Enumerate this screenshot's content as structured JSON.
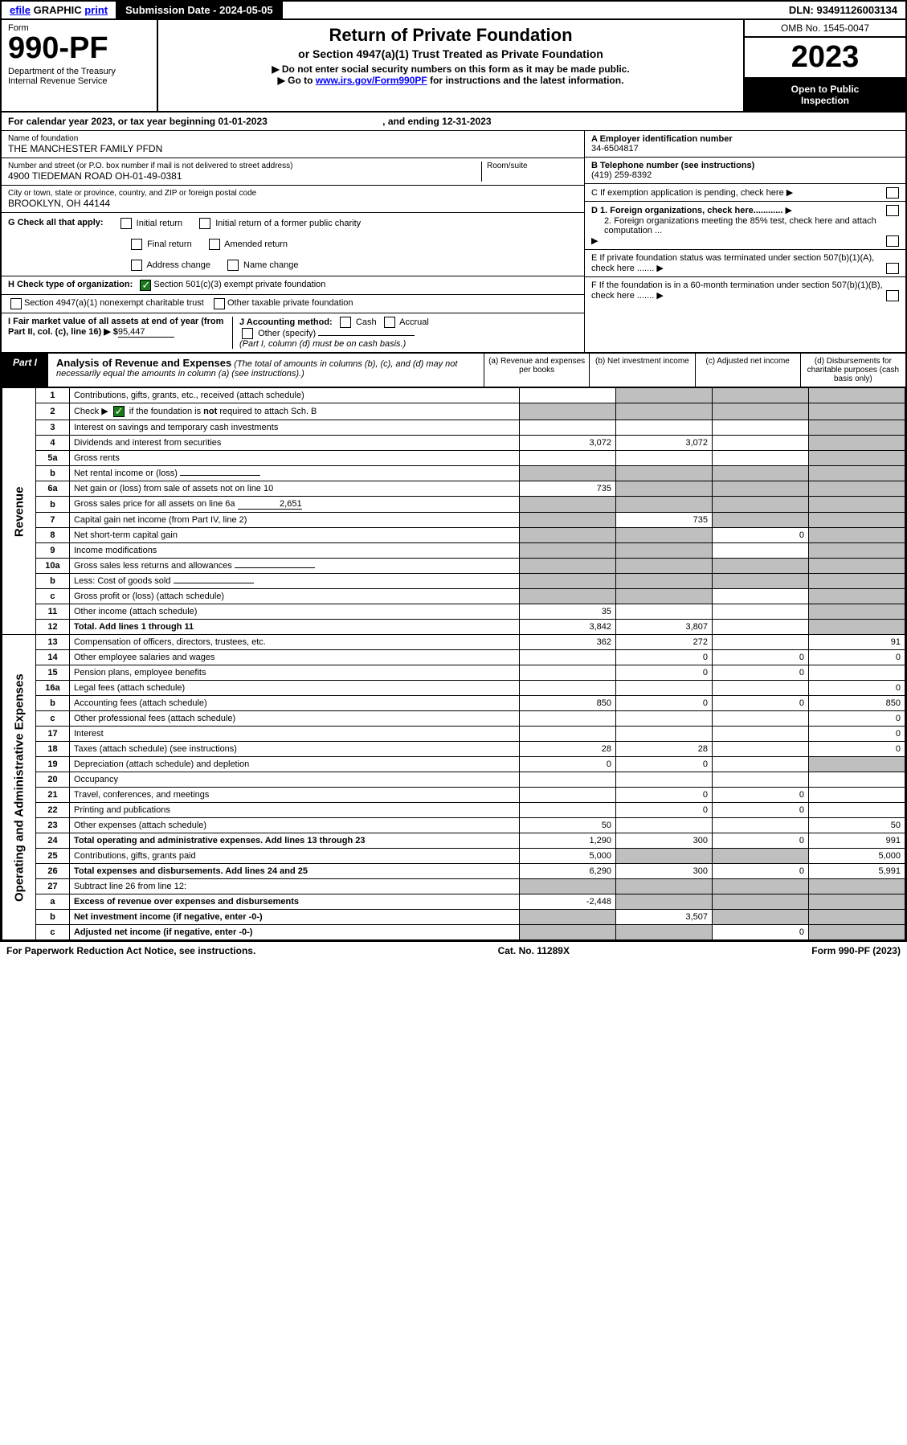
{
  "topbar": {
    "efile": "efile GRAPHIC print",
    "subdate_lbl": "Submission Date - ",
    "subdate": "2024-05-05",
    "dln_lbl": "DLN: ",
    "dln": "93491126003134",
    "efile_link": "efile"
  },
  "hdr": {
    "form": "Form",
    "code": "990-PF",
    "dept": "Department of the Treasury",
    "irs": "Internal Revenue Service",
    "title": "Return of Private Foundation",
    "sub1": "or Section 4947(a)(1) Trust Treated as Private Foundation",
    "sub2a": "▶ Do not enter social security numbers on this form as it may be made public.",
    "sub2b": "▶ Go to ",
    "link": "www.irs.gov/Form990PF",
    "sub2c": " for instructions and the latest information.",
    "omb": "OMB No. 1545-0047",
    "year": "2023",
    "otp1": "Open to Public",
    "otp2": "Inspection"
  },
  "cy": {
    "text": "For calendar year 2023, or tax year beginning 01-01-2023",
    "end": ", and ending 12-31-2023"
  },
  "info": {
    "name_lbl": "Name of foundation",
    "name": "THE MANCHESTER FAMILY PFDN",
    "addr_lbl": "Number and street (or P.O. box number if mail is not delivered to street address)",
    "addr": "4900 TIEDEMAN ROAD OH-01-49-0381",
    "room_lbl": "Room/suite",
    "city_lbl": "City or town, state or province, country, and ZIP or foreign postal code",
    "city": "BROOKLYN, OH  44144",
    "ein_lbl": "A Employer identification number",
    "ein": "34-6504817",
    "tel_lbl": "B Telephone number (see instructions)",
    "tel": "(419) 259-8392",
    "c": "C If exemption application is pending, check here",
    "d1": "D 1. Foreign organizations, check here............",
    "d2": "2. Foreign organizations meeting the 85% test, check here and attach computation ...",
    "e": "E  If private foundation status was terminated under section 507(b)(1)(A), check here .......",
    "f": "F  If the foundation is in a 60-month termination under section 507(b)(1)(B), check here .......",
    "g": "G Check all that apply:",
    "g1": "Initial return",
    "g2": "Initial return of a former public charity",
    "g3": "Final return",
    "g4": "Amended return",
    "g5": "Address change",
    "g6": "Name change",
    "h": "H Check type of organization:",
    "h1": "Section 501(c)(3) exempt private foundation",
    "h2": "Section 4947(a)(1) nonexempt charitable trust",
    "h3": "Other taxable private foundation",
    "i": "I Fair market value of all assets at end of year (from Part II, col. (c), line 16) ▶ $",
    "i_val": "95,447",
    "j": "J Accounting method:",
    "j1": "Cash",
    "j2": "Accrual",
    "j3": "Other (specify)",
    "j4": "(Part I, column (d) must be on cash basis.)"
  },
  "part1": {
    "tab": "Part I",
    "title": "Analysis of Revenue and Expenses",
    "desc": "(The total of amounts in columns (b), (c), and (d) may not necessarily equal the amounts in column (a) (see instructions).)",
    "ca": "(a)  Revenue and expenses per books",
    "cb": "(b)  Net investment income",
    "cc": "(c)  Adjusted net income",
    "cd": "(d)  Disbursements for charitable purposes (cash basis only)"
  },
  "sidelabels": {
    "rev": "Revenue",
    "exp": "Operating and Administrative Expenses"
  },
  "rows": [
    {
      "n": "1",
      "d": "Contributions, gifts, grants, etc., received (attach schedule)",
      "a": "",
      "b": "g",
      "c": "g",
      "dv": "g"
    },
    {
      "n": "2",
      "d": "Check ▶ ☑ if the foundation is not required to attach Sch. B",
      "a": "g",
      "b": "g",
      "c": "g",
      "dv": "g",
      "special": "chk"
    },
    {
      "n": "3",
      "d": "Interest on savings and temporary cash investments",
      "a": "",
      "b": "",
      "c": "",
      "dv": "g"
    },
    {
      "n": "4",
      "d": "Dividends and interest from securities",
      "a": "3,072",
      "b": "3,072",
      "c": "",
      "dv": "g"
    },
    {
      "n": "5a",
      "d": "Gross rents",
      "a": "",
      "b": "",
      "c": "",
      "dv": "g"
    },
    {
      "n": "b",
      "d": "Net rental income or (loss)",
      "a": "g",
      "b": "g",
      "c": "g",
      "dv": "g",
      "inline": true
    },
    {
      "n": "6a",
      "d": "Net gain or (loss) from sale of assets not on line 10",
      "a": "735",
      "b": "g",
      "c": "g",
      "dv": "g"
    },
    {
      "n": "b",
      "d": "Gross sales price for all assets on line 6a",
      "a": "g",
      "b": "g",
      "c": "g",
      "dv": "g",
      "inline": true,
      "ival": "2,651"
    },
    {
      "n": "7",
      "d": "Capital gain net income (from Part IV, line 2)",
      "a": "g",
      "b": "735",
      "c": "g",
      "dv": "g"
    },
    {
      "n": "8",
      "d": "Net short-term capital gain",
      "a": "g",
      "b": "g",
      "c": "0",
      "dv": "g"
    },
    {
      "n": "9",
      "d": "Income modifications",
      "a": "g",
      "b": "g",
      "c": "",
      "dv": "g"
    },
    {
      "n": "10a",
      "d": "Gross sales less returns and allowances",
      "a": "g",
      "b": "g",
      "c": "g",
      "dv": "g",
      "inline": true
    },
    {
      "n": "b",
      "d": "Less: Cost of goods sold",
      "a": "g",
      "b": "g",
      "c": "g",
      "dv": "g",
      "inline": true
    },
    {
      "n": "c",
      "d": "Gross profit or (loss) (attach schedule)",
      "a": "g",
      "b": "g",
      "c": "",
      "dv": "g"
    },
    {
      "n": "11",
      "d": "Other income (attach schedule)",
      "a": "35",
      "b": "",
      "c": "",
      "dv": "g"
    },
    {
      "n": "12",
      "d": "Total. Add lines 1 through 11",
      "a": "3,842",
      "b": "3,807",
      "c": "",
      "dv": "g",
      "bold": true
    },
    {
      "n": "13",
      "d": "Compensation of officers, directors, trustees, etc.",
      "a": "362",
      "b": "272",
      "c": "",
      "dv": "91",
      "sec": "exp"
    },
    {
      "n": "14",
      "d": "Other employee salaries and wages",
      "a": "",
      "b": "0",
      "c": "0",
      "dv": "0"
    },
    {
      "n": "15",
      "d": "Pension plans, employee benefits",
      "a": "",
      "b": "0",
      "c": "0",
      "dv": ""
    },
    {
      "n": "16a",
      "d": "Legal fees (attach schedule)",
      "a": "",
      "b": "",
      "c": "",
      "dv": "0"
    },
    {
      "n": "b",
      "d": "Accounting fees (attach schedule)",
      "a": "850",
      "b": "0",
      "c": "0",
      "dv": "850"
    },
    {
      "n": "c",
      "d": "Other professional fees (attach schedule)",
      "a": "",
      "b": "",
      "c": "",
      "dv": "0"
    },
    {
      "n": "17",
      "d": "Interest",
      "a": "",
      "b": "",
      "c": "",
      "dv": "0"
    },
    {
      "n": "18",
      "d": "Taxes (attach schedule) (see instructions)",
      "a": "28",
      "b": "28",
      "c": "",
      "dv": "0"
    },
    {
      "n": "19",
      "d": "Depreciation (attach schedule) and depletion",
      "a": "0",
      "b": "0",
      "c": "",
      "dv": "g"
    },
    {
      "n": "20",
      "d": "Occupancy",
      "a": "",
      "b": "",
      "c": "",
      "dv": ""
    },
    {
      "n": "21",
      "d": "Travel, conferences, and meetings",
      "a": "",
      "b": "0",
      "c": "0",
      "dv": ""
    },
    {
      "n": "22",
      "d": "Printing and publications",
      "a": "",
      "b": "0",
      "c": "0",
      "dv": ""
    },
    {
      "n": "23",
      "d": "Other expenses (attach schedule)",
      "a": "50",
      "b": "",
      "c": "",
      "dv": "50"
    },
    {
      "n": "24",
      "d": "Total operating and administrative expenses. Add lines 13 through 23",
      "a": "1,290",
      "b": "300",
      "c": "0",
      "dv": "991",
      "bold": true
    },
    {
      "n": "25",
      "d": "Contributions, gifts, grants paid",
      "a": "5,000",
      "b": "g",
      "c": "g",
      "dv": "5,000"
    },
    {
      "n": "26",
      "d": "Total expenses and disbursements. Add lines 24 and 25",
      "a": "6,290",
      "b": "300",
      "c": "0",
      "dv": "5,991",
      "bold": true
    },
    {
      "n": "27",
      "d": "Subtract line 26 from line 12:",
      "a": "g",
      "b": "g",
      "c": "g",
      "dv": "g"
    },
    {
      "n": "a",
      "d": "Excess of revenue over expenses and disbursements",
      "a": "-2,448",
      "b": "g",
      "c": "g",
      "dv": "g",
      "bold": true
    },
    {
      "n": "b",
      "d": "Net investment income (if negative, enter -0-)",
      "a": "g",
      "b": "3,507",
      "c": "g",
      "dv": "g",
      "bold": true
    },
    {
      "n": "c",
      "d": "Adjusted net income (if negative, enter -0-)",
      "a": "g",
      "b": "g",
      "c": "0",
      "dv": "g",
      "bold": true
    }
  ],
  "footer": {
    "l": "For Paperwork Reduction Act Notice, see instructions.",
    "c": "Cat. No. 11289X",
    "r": "Form 990-PF (2023)"
  },
  "colors": {
    "black": "#000000",
    "green": "#1a7a1a",
    "grey": "#bfbfbf",
    "blue": "#0000ff"
  }
}
